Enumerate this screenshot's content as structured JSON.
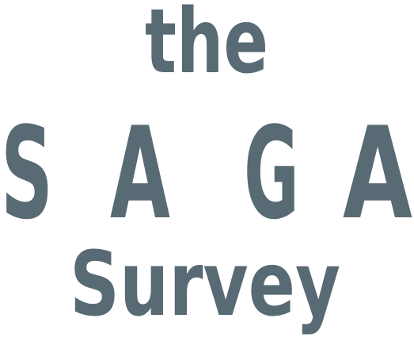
{
  "logo": {
    "line1": "the",
    "letters": [
      "S",
      "A",
      "G",
      "A"
    ],
    "line3": "Survey",
    "color": "#586a74"
  }
}
